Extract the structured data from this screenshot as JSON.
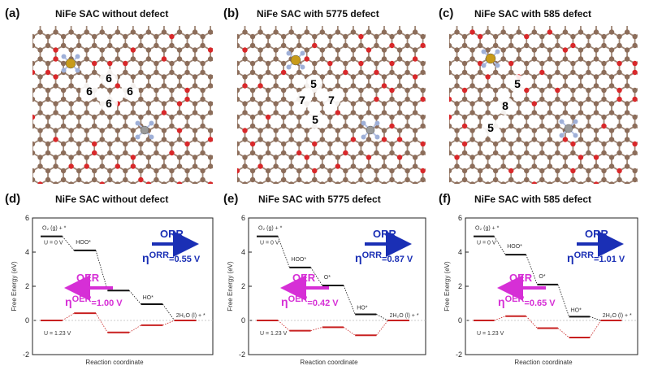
{
  "panels_top": [
    {
      "label": "(a)",
      "title": "NiFe SAC without defect",
      "rings": [
        "6",
        "6",
        "6",
        "6"
      ]
    },
    {
      "label": "(b)",
      "title": "NiFe SAC with 5775 defect",
      "rings": [
        "5",
        "7",
        "7",
        "5"
      ]
    },
    {
      "label": "(c)",
      "title": "NiFe SAC with 585 defect",
      "rings": [
        "5",
        "8",
        "5"
      ]
    }
  ],
  "colors": {
    "carbon": "#8c6d5a",
    "oxygen": "#d8282a",
    "nitrogen": "#9fb0d8",
    "metal_gold": "#c89b1a",
    "metal_grey": "#9a9a9a",
    "orr": "#1a2fb5",
    "oer": "#d62fd6",
    "red_path": "#c82020"
  },
  "panels_bottom": [
    {
      "label": "(d)",
      "title": "NiFe SAC without defect",
      "orr_label": "ORR",
      "oer_label": "OER",
      "eta_orr_sym": "η",
      "eta_orr_sup": "ORR",
      "eta_orr_val": "=0.55 V",
      "eta_oer_sym": "η",
      "eta_oer_sup": "OER",
      "eta_oer_val": "=1.00 V",
      "o2_label": "O₂ (g) + *",
      "u0_label": "U = 0 V",
      "u123_label": "U = 1.23 V",
      "ooh_label": "HOO*",
      "o_label": "",
      "oh_label": "HO*",
      "h2o_label": "2H₂O (l) + *",
      "ylabel": "Free Energy (eV)",
      "xlabel": "Reaction coordinate",
      "yticks": [
        "-2",
        "0",
        "2",
        "4",
        "6"
      ]
    },
    {
      "label": "(e)",
      "title": "NiFe SAC with 5775 defect",
      "orr_label": "ORR",
      "oer_label": "OER",
      "eta_orr_sym": "η",
      "eta_orr_sup": "ORR",
      "eta_orr_val": "=0.87 V",
      "eta_oer_sym": "η",
      "eta_oer_sup": "OER",
      "eta_oer_val": "=0.42 V",
      "o2_label": "O₂ (g) + *",
      "u0_label": "U = 0 V",
      "u123_label": "U = 1.23 V",
      "ooh_label": "HOO*",
      "o_label": "O*",
      "oh_label": "HO*",
      "h2o_label": "2H₂O (l) + *",
      "ylabel": "Free Energy (eV)",
      "xlabel": "Reaction coordinate",
      "yticks": [
        "-2",
        "0",
        "2",
        "4",
        "6"
      ]
    },
    {
      "label": "(f)",
      "title": "NiFe SAC with 585 defect",
      "orr_label": "ORR",
      "oer_label": "OER",
      "eta_orr_sym": "η",
      "eta_orr_sup": "ORR",
      "eta_orr_val": "=1.01 V",
      "eta_oer_sym": "η",
      "eta_oer_sup": "OER",
      "eta_oer_val": "=0.65 V",
      "o2_label": "O₂ (g) + *",
      "u0_label": "U = 0 V",
      "u123_label": "U = 1.23 V",
      "ooh_label": "HOO*",
      "o_label": "O*",
      "oh_label": "HO*",
      "h2o_label": "2H₂O (l) + *",
      "ylabel": "Free Energy (eV)",
      "xlabel": "Reaction coordinate",
      "yticks": [
        "-2",
        "0",
        "2",
        "4",
        "6"
      ]
    }
  ],
  "chart_data": [
    {
      "type": "line",
      "title": "NiFe SAC without defect",
      "xlabel": "Reaction coordinate",
      "ylabel": "Free Energy (eV)",
      "ylim": [
        -2,
        6
      ],
      "categories": [
        "O2(g)+*",
        "HOO*",
        "O*",
        "HO*",
        "2H2O(l)+*"
      ],
      "series": [
        {
          "name": "U = 0 V",
          "values": [
            4.92,
            4.1,
            1.75,
            0.95,
            0
          ]
        },
        {
          "name": "U = 1.23 V",
          "values": [
            0,
            0.42,
            -0.7,
            -0.28,
            0
          ]
        }
      ]
    },
    {
      "type": "line",
      "title": "NiFe SAC with 5775 defect",
      "xlabel": "Reaction coordinate",
      "ylabel": "Free Energy (eV)",
      "ylim": [
        -2,
        6
      ],
      "categories": [
        "O2(g)+*",
        "HOO*",
        "O*",
        "HO*",
        "2H2O(l)+*"
      ],
      "series": [
        {
          "name": "U = 0 V",
          "values": [
            4.92,
            3.1,
            2.05,
            0.36,
            0
          ]
        },
        {
          "name": "U = 1.23 V",
          "values": [
            0,
            -0.6,
            -0.4,
            -0.87,
            0
          ]
        }
      ]
    },
    {
      "type": "line",
      "title": "NiFe SAC with 585 defect",
      "xlabel": "Reaction coordinate",
      "ylabel": "Free Energy (eV)",
      "ylim": [
        -2,
        6
      ],
      "categories": [
        "O2(g)+*",
        "HOO*",
        "O*",
        "HO*",
        "2H2O(l)+*"
      ],
      "series": [
        {
          "name": "U = 0 V",
          "values": [
            4.92,
            3.85,
            2.1,
            0.22,
            0
          ]
        },
        {
          "name": "U = 1.23 V",
          "values": [
            0,
            0.25,
            -0.45,
            -1.0,
            0
          ]
        }
      ]
    }
  ]
}
